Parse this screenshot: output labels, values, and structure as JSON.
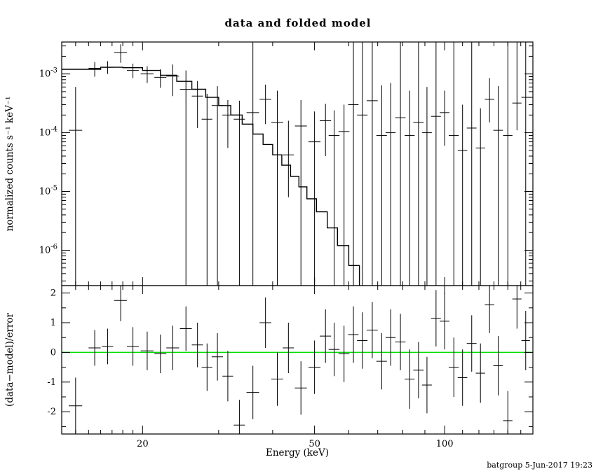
{
  "footer": "batgroup  5-Jun-2017 19:23",
  "chart_data": {
    "type": "scatter",
    "title": "data and folded model",
    "xlabel": "Energy (keV)",
    "x_scale": "log",
    "x_range": [
      13,
      160
    ],
    "x_ticks": [
      20,
      50,
      100
    ],
    "x_minor_ticks": [
      14,
      15,
      16,
      17,
      18,
      19,
      30,
      40,
      60,
      70,
      80,
      90,
      110,
      120,
      130,
      140,
      150
    ],
    "panels": [
      {
        "name": "spectrum",
        "ylabel": "normalized counts s⁻¹ keV⁻¹",
        "y_scale": "log",
        "y_range": [
          2.5e-07,
          0.0035
        ],
        "y_ticks": [
          0.001,
          0.0001,
          1e-05,
          1e-06
        ],
        "model": {
          "edges": [
            13,
            16,
            18,
            20,
            22,
            24,
            26,
            28,
            30,
            32,
            34,
            36,
            38,
            40,
            42,
            44,
            46,
            48,
            50.5,
            53.5,
            56.5,
            60,
            63.5
          ],
          "values": [
            0.0012,
            0.0013,
            0.00128,
            0.00115,
            0.00095,
            0.00075,
            0.00055,
            0.0004,
            0.00029,
            0.0002,
            0.00014,
            9.5e-05,
            6.3e-05,
            4.2e-05,
            2.8e-05,
            1.8e-05,
            1.2e-05,
            7.5e-06,
            4.5e-06,
            2.4e-06,
            1.2e-06,
            5.5e-07
          ]
        },
        "points": [
          {
            "e": 14.0,
            "w": 0.5,
            "f": 0.00011,
            "lo": 1e-08,
            "hi": 0.0006
          },
          {
            "e": 15.5,
            "w": 0.5,
            "f": 0.00125,
            "lo": 0.0009,
            "hi": 0.0016
          },
          {
            "e": 16.6,
            "w": 0.5,
            "f": 0.0013,
            "lo": 0.001,
            "hi": 0.00165
          },
          {
            "e": 17.8,
            "w": 0.6,
            "f": 0.0023,
            "lo": 0.00155,
            "hi": 0.0032
          },
          {
            "e": 19.0,
            "w": 0.6,
            "f": 0.00115,
            "lo": 0.00085,
            "hi": 0.0015
          },
          {
            "e": 20.5,
            "w": 0.7,
            "f": 0.001,
            "lo": 0.0007,
            "hi": 0.00135
          },
          {
            "e": 22.0,
            "w": 0.7,
            "f": 0.00088,
            "lo": 0.00058,
            "hi": 0.0012
          },
          {
            "e": 23.5,
            "w": 0.8,
            "f": 0.00092,
            "lo": 0.00042,
            "hi": 0.00145
          },
          {
            "e": 25.2,
            "w": 0.8,
            "f": 0.00055,
            "lo": 1e-08,
            "hi": 0.00115
          },
          {
            "e": 26.8,
            "w": 0.8,
            "f": 0.00042,
            "lo": 0.00012,
            "hi": 0.00076
          },
          {
            "e": 28.2,
            "w": 0.8,
            "f": 0.00017,
            "lo": 1e-08,
            "hi": 0.00046
          },
          {
            "e": 29.8,
            "w": 0.9,
            "f": 0.00029,
            "lo": 1e-08,
            "hi": 0.00062
          },
          {
            "e": 31.5,
            "w": 0.9,
            "f": 0.0002,
            "lo": 5.5e-05,
            "hi": 0.00036
          },
          {
            "e": 33.5,
            "w": 1.0,
            "f": 0.00017,
            "lo": 1e-08,
            "hi": 0.00035
          },
          {
            "e": 36.0,
            "w": 1.2,
            "f": 0.00022,
            "lo": 1e-08,
            "hi": 0.005
          },
          {
            "e": 38.5,
            "w": 1.2,
            "f": 0.00037,
            "lo": 0.00014,
            "hi": 0.00066
          },
          {
            "e": 41.0,
            "w": 1.3,
            "f": 0.00015,
            "lo": 1e-08,
            "hi": 0.00052
          },
          {
            "e": 43.5,
            "w": 1.3,
            "f": 4.2e-05,
            "lo": 8e-06,
            "hi": 0.00016
          },
          {
            "e": 46.5,
            "w": 1.5,
            "f": 0.00013,
            "lo": 1e-08,
            "hi": 0.00036
          },
          {
            "e": 50.0,
            "w": 1.6,
            "f": 7e-05,
            "lo": 1e-08,
            "hi": 0.00023
          },
          {
            "e": 53.0,
            "w": 1.6,
            "f": 0.00016,
            "lo": 4e-05,
            "hi": 0.00031
          },
          {
            "e": 55.5,
            "w": 1.6,
            "f": 9e-05,
            "lo": 1e-08,
            "hi": 0.00024
          },
          {
            "e": 58.5,
            "w": 1.7,
            "f": 0.000105,
            "lo": 1e-08,
            "hi": 0.0003
          },
          {
            "e": 61.5,
            "w": 1.7,
            "f": 0.0003,
            "lo": 1e-08,
            "hi": 0.005
          },
          {
            "e": 64.5,
            "w": 1.8,
            "f": 0.0002,
            "lo": 1e-08,
            "hi": 0.005
          },
          {
            "e": 68.0,
            "w": 2.0,
            "f": 0.00035,
            "lo": 1e-08,
            "hi": 0.005
          },
          {
            "e": 71.5,
            "w": 2.0,
            "f": 9e-05,
            "lo": 1e-08,
            "hi": 0.00064
          },
          {
            "e": 75.0,
            "w": 2.0,
            "f": 0.0001,
            "lo": 1e-08,
            "hi": 0.0007
          },
          {
            "e": 79.0,
            "w": 2.2,
            "f": 0.00018,
            "lo": 1e-08,
            "hi": 0.005
          },
          {
            "e": 83.0,
            "w": 2.2,
            "f": 9e-05,
            "lo": 1e-08,
            "hi": 0.00052
          },
          {
            "e": 87.0,
            "w": 2.4,
            "f": 0.00015,
            "lo": 1e-08,
            "hi": 0.005
          },
          {
            "e": 91.0,
            "w": 2.4,
            "f": 0.0001,
            "lo": 1e-08,
            "hi": 0.0006
          },
          {
            "e": 95.5,
            "w": 2.5,
            "f": 0.00019,
            "lo": 1e-08,
            "hi": 0.005
          },
          {
            "e": 100.0,
            "w": 2.6,
            "f": 0.00022,
            "lo": 6e-05,
            "hi": 0.00052
          },
          {
            "e": 105.0,
            "w": 2.8,
            "f": 9e-05,
            "lo": 1e-08,
            "hi": 0.005
          },
          {
            "e": 110.0,
            "w": 2.8,
            "f": 5e-05,
            "lo": 1e-08,
            "hi": 0.0003
          },
          {
            "e": 115.5,
            "w": 3.0,
            "f": 0.00012,
            "lo": 1e-08,
            "hi": 0.005
          },
          {
            "e": 121.0,
            "w": 3.0,
            "f": 5.5e-05,
            "lo": 1e-08,
            "hi": 0.00026
          },
          {
            "e": 127.0,
            "w": 3.2,
            "f": 0.00037,
            "lo": 0.00015,
            "hi": 0.00085
          },
          {
            "e": 133.0,
            "w": 3.4,
            "f": 0.00011,
            "lo": 1e-08,
            "hi": 0.00062
          },
          {
            "e": 140.0,
            "w": 3.5,
            "f": 9e-05,
            "lo": 1e-08,
            "hi": 0.005
          },
          {
            "e": 147.0,
            "w": 3.6,
            "f": 0.00032,
            "lo": 0.00011,
            "hi": 0.005
          },
          {
            "e": 154.0,
            "w": 3.5,
            "f": 0.0004,
            "lo": 1e-08,
            "hi": 0.005
          }
        ]
      },
      {
        "name": "residuals",
        "ylabel": "(data−model)/error",
        "y_scale": "linear",
        "y_range": [
          -2.75,
          2.25
        ],
        "y_ticks": [
          -2,
          -1,
          0,
          1,
          2
        ],
        "zero_line_color": "#00dd00",
        "points": [
          {
            "e": 14.0,
            "w": 0.5,
            "r": -1.8,
            "lo": -3.2,
            "hi": -0.85
          },
          {
            "e": 15.5,
            "w": 0.5,
            "r": 0.15,
            "lo": -0.45,
            "hi": 0.75
          },
          {
            "e": 16.6,
            "w": 0.5,
            "r": 0.2,
            "lo": -0.4,
            "hi": 0.8
          },
          {
            "e": 17.8,
            "w": 0.6,
            "r": 1.75,
            "lo": 1.05,
            "hi": 2.45
          },
          {
            "e": 19.0,
            "w": 0.6,
            "r": 0.2,
            "lo": -0.45,
            "hi": 0.85
          },
          {
            "e": 20.5,
            "w": 0.7,
            "r": 0.05,
            "lo": -0.6,
            "hi": 0.7
          },
          {
            "e": 22.0,
            "w": 0.7,
            "r": -0.05,
            "lo": -0.7,
            "hi": 0.6
          },
          {
            "e": 23.5,
            "w": 0.8,
            "r": 0.15,
            "lo": -0.6,
            "hi": 0.9
          },
          {
            "e": 25.2,
            "w": 0.8,
            "r": 0.8,
            "lo": 0.05,
            "hi": 1.55
          },
          {
            "e": 26.8,
            "w": 0.8,
            "r": 0.25,
            "lo": -0.5,
            "hi": 1.0
          },
          {
            "e": 28.2,
            "w": 0.8,
            "r": -0.5,
            "lo": -1.3,
            "hi": 0.3
          },
          {
            "e": 29.8,
            "w": 0.9,
            "r": -0.15,
            "lo": -0.95,
            "hi": 0.65
          },
          {
            "e": 31.5,
            "w": 0.9,
            "r": -0.8,
            "lo": -1.65,
            "hi": 0.05
          },
          {
            "e": 33.5,
            "w": 1.0,
            "r": -2.45,
            "lo": -3.3,
            "hi": -1.6
          },
          {
            "e": 36.0,
            "w": 1.2,
            "r": -1.35,
            "lo": -2.25,
            "hi": -0.45
          },
          {
            "e": 38.5,
            "w": 1.2,
            "r": 1.0,
            "lo": 0.15,
            "hi": 1.85
          },
          {
            "e": 41.0,
            "w": 1.3,
            "r": -0.9,
            "lo": -1.8,
            "hi": 0.0
          },
          {
            "e": 43.5,
            "w": 1.3,
            "r": 0.15,
            "lo": -0.7,
            "hi": 1.0
          },
          {
            "e": 46.5,
            "w": 1.5,
            "r": -1.2,
            "lo": -2.1,
            "hi": -0.3
          },
          {
            "e": 50.0,
            "w": 1.6,
            "r": -0.5,
            "lo": -1.4,
            "hi": 0.4
          },
          {
            "e": 53.0,
            "w": 1.6,
            "r": 0.55,
            "lo": -0.35,
            "hi": 1.45
          },
          {
            "e": 55.5,
            "w": 1.6,
            "r": 0.1,
            "lo": -0.8,
            "hi": 1.0
          },
          {
            "e": 58.5,
            "w": 1.7,
            "r": -0.05,
            "lo": -1.0,
            "hi": 0.9
          },
          {
            "e": 61.5,
            "w": 1.7,
            "r": 0.6,
            "lo": -0.35,
            "hi": 1.55
          },
          {
            "e": 64.5,
            "w": 1.8,
            "r": 0.4,
            "lo": -0.55,
            "hi": 1.35
          },
          {
            "e": 68.0,
            "w": 2.0,
            "r": 0.75,
            "lo": -0.2,
            "hi": 1.7
          },
          {
            "e": 71.5,
            "w": 2.0,
            "r": -0.3,
            "lo": -1.25,
            "hi": 0.65
          },
          {
            "e": 75.0,
            "w": 2.0,
            "r": 0.5,
            "lo": -0.45,
            "hi": 1.45
          },
          {
            "e": 79.0,
            "w": 2.2,
            "r": 0.35,
            "lo": -0.6,
            "hi": 1.3
          },
          {
            "e": 83.0,
            "w": 2.2,
            "r": -0.9,
            "lo": -1.9,
            "hi": 0.1
          },
          {
            "e": 87.0,
            "w": 2.4,
            "r": -0.6,
            "lo": -1.55,
            "hi": 0.35
          },
          {
            "e": 91.0,
            "w": 2.4,
            "r": -1.1,
            "lo": -2.05,
            "hi": -0.15
          },
          {
            "e": 95.5,
            "w": 2.5,
            "r": 1.15,
            "lo": 0.2,
            "hi": 2.1
          },
          {
            "e": 100.0,
            "w": 2.6,
            "r": 1.05,
            "lo": 0.1,
            "hi": 2.0
          },
          {
            "e": 105.0,
            "w": 2.8,
            "r": -0.5,
            "lo": -1.5,
            "hi": 0.5
          },
          {
            "e": 110.0,
            "w": 2.8,
            "r": -0.85,
            "lo": -1.8,
            "hi": 0.1
          },
          {
            "e": 115.5,
            "w": 3.0,
            "r": 0.3,
            "lo": -0.65,
            "hi": 1.25
          },
          {
            "e": 121.0,
            "w": 3.0,
            "r": -0.7,
            "lo": -1.7,
            "hi": 0.3
          },
          {
            "e": 127.0,
            "w": 3.2,
            "r": 1.6,
            "lo": 0.65,
            "hi": 2.55
          },
          {
            "e": 133.0,
            "w": 3.4,
            "r": -0.45,
            "lo": -1.45,
            "hi": 0.55
          },
          {
            "e": 140.0,
            "w": 3.5,
            "r": -2.3,
            "lo": -3.3,
            "hi": -1.3
          },
          {
            "e": 147.0,
            "w": 3.6,
            "r": 1.8,
            "lo": 0.8,
            "hi": 2.8
          },
          {
            "e": 154.0,
            "w": 3.5,
            "r": 0.4,
            "lo": -0.6,
            "hi": 1.4
          }
        ]
      }
    ]
  }
}
